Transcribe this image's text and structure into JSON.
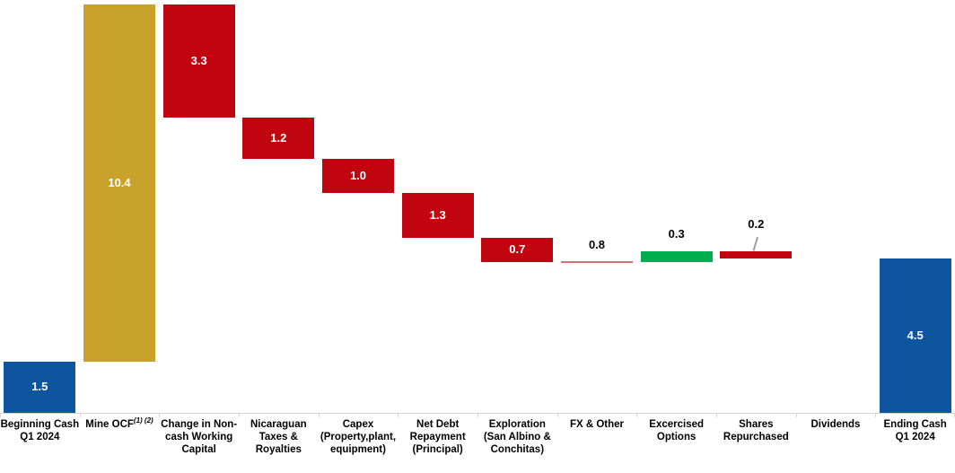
{
  "chart_data": {
    "type": "bar",
    "subtype": "waterfall",
    "title": "",
    "xlabel": "",
    "ylabel": "",
    "baseline_value": 0,
    "value_axis_max": 11.9,
    "grid": false,
    "legend": false,
    "categories": [
      "Beginning Cash Q1 2024",
      "Mine OCF (1) (2)",
      "Change in Non-cash Working Capital",
      "Nicaraguan Taxes & Royalties",
      "Capex (Property,plant, equipment)",
      "Net Debt Repayment (Principal)",
      "Exploration (San Albino & Conchitas)",
      "FX & Other",
      "Excercised Options",
      "Shares Repurchased",
      "Dividends",
      "Ending Cash Q1 2024"
    ],
    "values": [
      1.5,
      10.4,
      -3.3,
      -1.2,
      -1.0,
      -1.3,
      -0.7,
      0.8,
      0.3,
      -0.2,
      null,
      4.5
    ],
    "columns": [
      {
        "label_lines": [
          "Beginning Cash",
          "Q1 2024"
        ],
        "superscript": "",
        "value_label": "1.5",
        "direction": "absolute",
        "color_key": "blue",
        "value_pos": "inside",
        "leader": false
      },
      {
        "label_lines": [
          "Mine OCF"
        ],
        "superscript": "(1) (2)",
        "value_label": "10.4",
        "direction": "up",
        "color_key": "gold",
        "value_pos": "inside",
        "leader": false
      },
      {
        "label_lines": [
          "Change in Non-",
          "cash Working",
          "Capital"
        ],
        "superscript": "",
        "value_label": "3.3",
        "direction": "down",
        "color_key": "red",
        "value_pos": "inside",
        "leader": false
      },
      {
        "label_lines": [
          "Nicaraguan",
          "Taxes &",
          "Royalties"
        ],
        "superscript": "",
        "value_label": "1.2",
        "direction": "down",
        "color_key": "red",
        "value_pos": "inside",
        "leader": false
      },
      {
        "label_lines": [
          "Capex",
          "(Property,plant,",
          "equipment)"
        ],
        "superscript": "",
        "value_label": "1.0",
        "direction": "down",
        "color_key": "red",
        "value_pos": "inside",
        "leader": false
      },
      {
        "label_lines": [
          "Net Debt",
          "Repayment",
          "(Principal)"
        ],
        "superscript": "",
        "value_label": "1.3",
        "direction": "down",
        "color_key": "red",
        "value_pos": "inside",
        "leader": false
      },
      {
        "label_lines": [
          "Exploration",
          "(San Albino &",
          "Conchitas)"
        ],
        "superscript": "",
        "value_label": "0.7",
        "direction": "down",
        "color_key": "red",
        "value_pos": "inside",
        "leader": false
      },
      {
        "label_lines": [
          "FX & Other"
        ],
        "superscript": "",
        "value_label": "0.8",
        "direction": "line",
        "color_key": "fxline",
        "value_pos": "above",
        "leader": false
      },
      {
        "label_lines": [
          "Excercised",
          "Options"
        ],
        "superscript": "",
        "value_label": "0.3",
        "direction": "up",
        "color_key": "green",
        "value_pos": "above",
        "leader": false
      },
      {
        "label_lines": [
          "Shares",
          "Repurchased"
        ],
        "superscript": "",
        "value_label": "0.2",
        "direction": "down",
        "color_key": "red",
        "value_pos": "above",
        "leader": true
      },
      {
        "label_lines": [
          "Dividends"
        ],
        "superscript": "",
        "value_label": "",
        "direction": "none",
        "color_key": "",
        "value_pos": "none",
        "leader": false
      },
      {
        "label_lines": [
          "Ending Cash",
          "Q1 2024"
        ],
        "superscript": "",
        "value_label": "4.5",
        "direction": "absolute",
        "color_key": "blue",
        "value_pos": "inside",
        "leader": false
      }
    ],
    "colors": {
      "blue": "#0E55A0",
      "gold": "#C9A22C",
      "red": "#C00511",
      "green": "#00AE4F",
      "fxline": "#D57070",
      "axis": "#D6D6D6",
      "leader": "#A0A0A0",
      "value_inside_text": "#FFFFFF",
      "value_above_text": "#000000"
    }
  }
}
